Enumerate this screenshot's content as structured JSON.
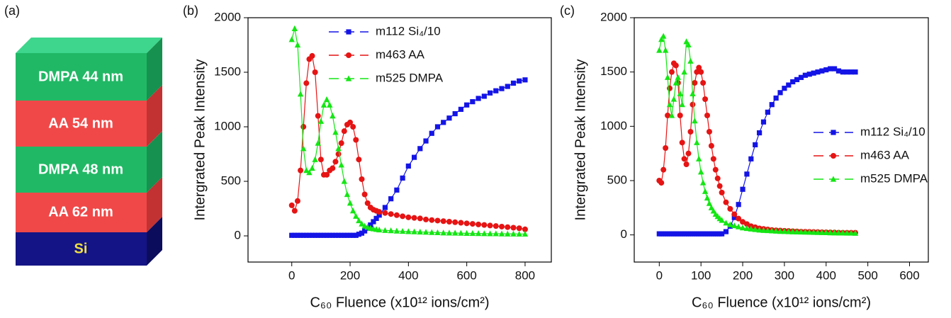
{
  "diagram": {
    "label": "(a)",
    "layers": [
      "DMPA 44 nm",
      "AA 54 nm",
      "DMPA 48 nm",
      "AA 62 nm",
      "Si"
    ]
  },
  "chart_data": [
    {
      "type": "line",
      "panel_label": "(b)",
      "x_label": "C₆₀ Fluence (x10¹² ions/cm²)",
      "y_label": "Intergrated Peak Intensity",
      "xlim": [
        -150,
        890
      ],
      "ylim": [
        -240,
        2000
      ],
      "xticks": [
        0,
        200,
        400,
        600,
        800
      ],
      "yticks": [
        0,
        500,
        1000,
        1500,
        2000
      ],
      "legend": "upper center",
      "x": [
        0,
        10,
        20,
        30,
        40,
        50,
        60,
        70,
        80,
        90,
        100,
        110,
        120,
        130,
        140,
        150,
        160,
        170,
        180,
        190,
        200,
        210,
        220,
        230,
        240,
        250,
        260,
        270,
        280,
        290,
        300,
        320,
        340,
        360,
        380,
        400,
        420,
        440,
        460,
        480,
        500,
        520,
        540,
        560,
        580,
        600,
        620,
        640,
        660,
        680,
        700,
        720,
        740,
        760,
        780,
        800
      ],
      "series": [
        {
          "name": "m112 Si₄/10",
          "color": "#1414e6",
          "marker": "square",
          "values": [
            5,
            5,
            5,
            5,
            5,
            5,
            5,
            5,
            5,
            5,
            5,
            5,
            5,
            5,
            5,
            5,
            5,
            5,
            5,
            5,
            5,
            5,
            5,
            15,
            25,
            45,
            70,
            100,
            130,
            160,
            190,
            260,
            340,
            420,
            530,
            640,
            720,
            800,
            870,
            940,
            1000,
            1040,
            1080,
            1120,
            1160,
            1200,
            1230,
            1260,
            1280,
            1310,
            1330,
            1350,
            1370,
            1400,
            1420,
            1430
          ]
        },
        {
          "name": "m463 AA",
          "color": "#e61414",
          "marker": "circle",
          "values": [
            280,
            230,
            320,
            600,
            1000,
            1400,
            1620,
            1650,
            1500,
            1100,
            700,
            560,
            560,
            600,
            620,
            680,
            750,
            850,
            960,
            1020,
            1040,
            1000,
            880,
            700,
            520,
            380,
            300,
            260,
            240,
            230,
            220,
            210,
            200,
            190,
            180,
            170,
            165,
            160,
            150,
            145,
            140,
            135,
            130,
            125,
            120,
            115,
            110,
            105,
            100,
            95,
            90,
            85,
            80,
            75,
            70,
            60
          ]
        },
        {
          "name": "m525 DMPA",
          "color": "#14e614",
          "marker": "triangle",
          "values": [
            1800,
            1900,
            1750,
            1300,
            800,
            600,
            580,
            620,
            700,
            850,
            1050,
            1200,
            1250,
            1200,
            1100,
            950,
            800,
            650,
            500,
            380,
            300,
            230,
            180,
            140,
            110,
            90,
            80,
            70,
            65,
            60,
            55,
            50,
            48,
            45,
            42,
            40,
            38,
            36,
            34,
            32,
            30,
            28,
            27,
            26,
            25,
            24,
            23,
            22,
            21,
            20,
            20,
            19,
            18,
            18,
            17,
            17
          ]
        }
      ]
    },
    {
      "type": "line",
      "panel_label": "(c)",
      "x_label": "C₆₀ Fluence (x10¹² ions/cm²)",
      "y_label": "Intergrated Peak Intensity",
      "xlim": [
        -60,
        645
      ],
      "ylim": [
        -250,
        2000
      ],
      "xticks": [
        0,
        100,
        200,
        300,
        400,
        500,
        600
      ],
      "yticks": [
        0,
        500,
        1000,
        1500,
        2000
      ],
      "legend": "center right",
      "x": [
        0,
        5,
        10,
        15,
        20,
        25,
        30,
        35,
        40,
        45,
        50,
        55,
        60,
        65,
        70,
        75,
        80,
        85,
        90,
        95,
        100,
        105,
        110,
        115,
        120,
        125,
        130,
        135,
        140,
        145,
        150,
        160,
        170,
        180,
        190,
        200,
        210,
        220,
        230,
        240,
        250,
        260,
        270,
        280,
        290,
        300,
        310,
        320,
        330,
        340,
        350,
        360,
        370,
        380,
        390,
        400,
        410,
        420,
        430,
        440,
        450,
        460,
        470
      ],
      "series": [
        {
          "name": "m112 Si₄/10",
          "color": "#1414e6",
          "marker": "square",
          "values": [
            10,
            10,
            10,
            10,
            10,
            10,
            10,
            10,
            10,
            10,
            10,
            10,
            10,
            10,
            10,
            10,
            10,
            10,
            10,
            10,
            10,
            10,
            10,
            10,
            10,
            10,
            10,
            10,
            10,
            10,
            10,
            30,
            80,
            160,
            280,
            420,
            560,
            700,
            830,
            940,
            1040,
            1130,
            1200,
            1260,
            1310,
            1350,
            1380,
            1410,
            1430,
            1450,
            1470,
            1480,
            1490,
            1500,
            1510,
            1520,
            1530,
            1530,
            1510,
            1500,
            1500,
            1500,
            1500
          ]
        },
        {
          "name": "m463 AA",
          "color": "#e61414",
          "marker": "circle",
          "values": [
            500,
            480,
            600,
            800,
            1100,
            1350,
            1500,
            1580,
            1560,
            1400,
            1100,
            850,
            700,
            650,
            750,
            950,
            1200,
            1400,
            1500,
            1540,
            1500,
            1400,
            1250,
            1100,
            950,
            820,
            700,
            600,
            520,
            450,
            390,
            300,
            240,
            190,
            150,
            120,
            100,
            80,
            70,
            60,
            55,
            50,
            45,
            42,
            40,
            38,
            36,
            34,
            32,
            30,
            29,
            28,
            27,
            26,
            25,
            24,
            23,
            22,
            21,
            20,
            20,
            20,
            20
          ]
        },
        {
          "name": "m525 DMPA",
          "color": "#14e614",
          "marker": "triangle",
          "values": [
            1700,
            1800,
            1830,
            1700,
            1450,
            1200,
            1100,
            1250,
            1400,
            1450,
            1300,
            1200,
            1500,
            1780,
            1750,
            1600,
            1300,
            1050,
            850,
            700,
            580,
            480,
            400,
            340,
            290,
            250,
            220,
            190,
            170,
            150,
            135,
            110,
            95,
            85,
            75,
            65,
            60,
            55,
            50,
            45,
            42,
            40,
            38,
            35,
            33,
            32,
            30,
            29,
            28,
            27,
            26,
            25,
            24,
            23,
            22,
            21,
            20,
            19,
            18,
            18,
            17,
            17,
            16
          ]
        }
      ]
    }
  ]
}
